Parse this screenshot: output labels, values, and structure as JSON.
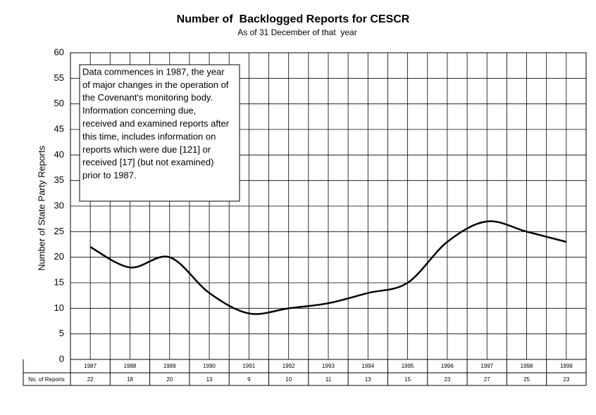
{
  "chart_data": {
    "type": "line",
    "title": "Number of  Backlogged Reports for CESCR",
    "subtitle": "As of 31 December of that  year",
    "y_label": "Number of State Party Reports",
    "annotation": [
      "Data commences in 1987, the year",
      "of major changes in the operation of",
      "the Covenant's monitoring body.",
      "Information concerning due,",
      "received and examined reports after",
      "this time, includes information on",
      "reports which were due [121] or",
      "received [17] (but not examined)",
      "prior to 1987."
    ],
    "table_label": "No. of Reports",
    "categories": [
      "1987",
      "1988",
      "1989",
      "1990",
      "1991",
      "1992",
      "1993",
      "1994",
      "1995",
      "1996",
      "1997",
      "1998",
      "1999"
    ],
    "values": [
      22,
      18,
      20,
      13,
      9,
      10,
      11,
      13,
      15,
      23,
      27,
      25,
      23
    ],
    "color": "#000000",
    "smooth": true,
    "ylim": [
      0,
      60
    ],
    "yticks": [
      0,
      5,
      10,
      15,
      20,
      25,
      30,
      35,
      40,
      45,
      50,
      55,
      60
    ],
    "grid": true
  }
}
